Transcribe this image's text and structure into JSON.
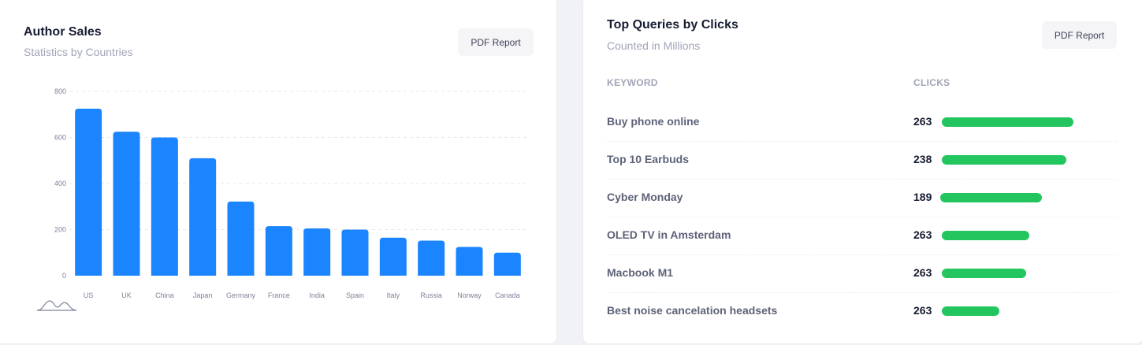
{
  "author_sales": {
    "title": "Author Sales",
    "subtitle": "Statistics by Countries",
    "pdf_label": "PDF Report"
  },
  "chart_data": {
    "type": "bar",
    "categories": [
      "US",
      "UK",
      "China",
      "Japan",
      "Germany",
      "France",
      "India",
      "Spain",
      "Italy",
      "Russia",
      "Norway",
      "Canada"
    ],
    "values": [
      725,
      625,
      600,
      510,
      322,
      215,
      205,
      200,
      165,
      152,
      125,
      100
    ],
    "yticks": [
      "0",
      "200",
      "400",
      "600",
      "800"
    ],
    "ylim": [
      0,
      800
    ],
    "bar_color": "#1b84ff",
    "grid": true
  },
  "top_queries": {
    "title": "Top Queries by Clicks",
    "subtitle": "Counted in Millions",
    "pdf_label": "PDF Report",
    "col_keyword": "KEYWORD",
    "col_clicks": "CLICKS",
    "bar_color": "#22c55e",
    "rows": [
      {
        "keyword": "Buy phone online",
        "clicks": "263",
        "bar_fraction": 0.75
      },
      {
        "keyword": "Top 10 Earbuds",
        "clicks": "238",
        "bar_fraction": 0.71
      },
      {
        "keyword": "Cyber Monday",
        "clicks": "189",
        "bar_fraction": 0.58
      },
      {
        "keyword": "OLED TV in Amsterdam",
        "clicks": "263",
        "bar_fraction": 0.5
      },
      {
        "keyword": "Macbook M1",
        "clicks": "263",
        "bar_fraction": 0.48
      },
      {
        "keyword": "Best noise cancelation headsets",
        "clicks": "263",
        "bar_fraction": 0.33
      }
    ]
  }
}
